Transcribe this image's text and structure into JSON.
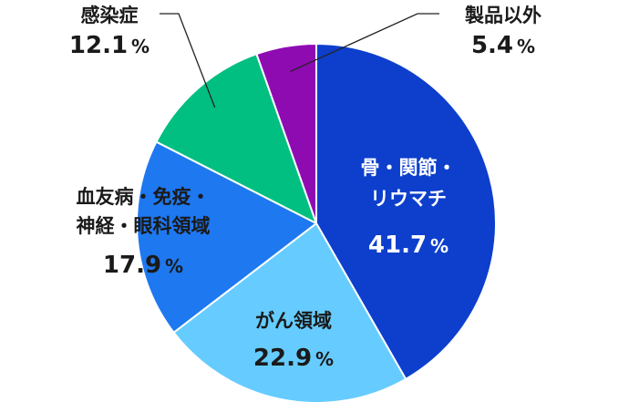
{
  "chart_data": {
    "type": "pie",
    "start": "top",
    "direction": "clockwise",
    "slices": [
      {
        "label_lines": [
          "骨・関節・",
          "リウマチ"
        ],
        "value": 41.7,
        "value_text": "41.7",
        "unit": "%",
        "color": "#0d3fcc",
        "label_color": "#ffffff",
        "label_placement": "inside"
      },
      {
        "label_lines": [
          "がん領域"
        ],
        "value": 22.9,
        "value_text": "22.9",
        "unit": "%",
        "color": "#66ccff",
        "label_color": "#1a1a1a",
        "label_placement": "inside"
      },
      {
        "label_lines": [
          "血友病・免疫・",
          "神経・眼科領域"
        ],
        "value": 17.9,
        "value_text": "17.9",
        "unit": "%",
        "color": "#1e78f0",
        "label_color": "#1a1a1a",
        "label_placement": "inside"
      },
      {
        "label_lines": [
          "感染症"
        ],
        "value": 12.1,
        "value_text": "12.1",
        "unit": "%",
        "color": "#00bf80",
        "label_color": "#1a1a1a",
        "label_placement": "outside-left"
      },
      {
        "label_lines": [
          "製品以外"
        ],
        "value": 5.4,
        "value_text": "5.4",
        "unit": "%",
        "color": "#8e0bb2",
        "label_color": "#1a1a1a",
        "label_placement": "outside-right"
      }
    ]
  }
}
